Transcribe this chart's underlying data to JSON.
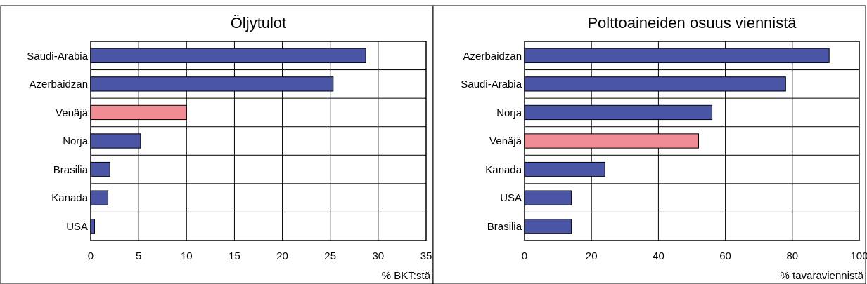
{
  "chart_data": [
    {
      "type": "bar",
      "orientation": "horizontal",
      "title": "Öljytulot",
      "xlabel": "% BKT:stä",
      "categories": [
        "Saudi-Arabia",
        "Azerbaidzan",
        "Venäjä",
        "Norja",
        "Brasilia",
        "Kanada",
        "USA"
      ],
      "values": [
        28.7,
        25.3,
        10,
        5.2,
        2.0,
        1.8,
        0.4
      ],
      "colors": [
        "#4b55a5",
        "#4b55a5",
        "#f08c94",
        "#4b55a5",
        "#4b55a5",
        "#4b55a5",
        "#4b55a5"
      ],
      "xlim": [
        0,
        35
      ],
      "xticks": [
        0,
        5,
        10,
        15,
        20,
        25,
        30,
        35
      ],
      "grid": true
    },
    {
      "type": "bar",
      "orientation": "horizontal",
      "title": "Polttoaineiden osuus viennistä",
      "xlabel": "% tavaraviennistä",
      "categories": [
        "Azerbaidzan",
        "Saudi-Arabia",
        "Norja",
        "Venäjä",
        "Kanada",
        "USA",
        "Brasilia"
      ],
      "values": [
        91,
        78,
        56,
        52,
        24,
        14,
        14
      ],
      "colors": [
        "#4b55a5",
        "#4b55a5",
        "#4b55a5",
        "#f08c94",
        "#4b55a5",
        "#4b55a5",
        "#4b55a5"
      ],
      "xlim": [
        0,
        100
      ],
      "xticks": [
        0,
        20,
        40,
        60,
        80,
        100
      ],
      "grid": true
    }
  ]
}
